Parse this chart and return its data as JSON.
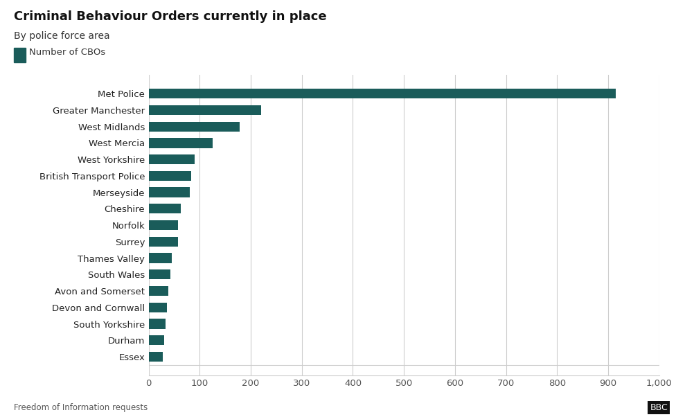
{
  "title": "Criminal Behaviour Orders currently in place",
  "subtitle": "By police force area",
  "legend_label": "Number of CBOs",
  "footnote": "Freedom of Information requests",
  "bar_color": "#1a5c5a",
  "background_color": "#ffffff",
  "categories": [
    "Met Police",
    "Greater Manchester",
    "West Midlands",
    "West Mercia",
    "West Yorkshire",
    "British Transport Police",
    "Merseyside",
    "Cheshire",
    "Norfolk",
    "Surrey",
    "Thames Valley",
    "South Wales",
    "Avon and Somerset",
    "Devon and Cornwall",
    "South Yorkshire",
    "Durham",
    "Essex"
  ],
  "values": [
    915,
    220,
    178,
    125,
    90,
    83,
    80,
    63,
    58,
    57,
    45,
    42,
    38,
    35,
    33,
    30,
    28
  ],
  "xlim": [
    0,
    1000
  ],
  "xtick_values": [
    0,
    100,
    200,
    300,
    400,
    500,
    600,
    700,
    800,
    900,
    1000
  ],
  "xtick_labels": [
    "0",
    "100",
    "200",
    "300",
    "400",
    "500",
    "600",
    "700",
    "800",
    "900",
    "1,000"
  ],
  "grid_color": "#cccccc",
  "title_fontsize": 13,
  "subtitle_fontsize": 10,
  "label_fontsize": 9.5,
  "tick_fontsize": 9.5,
  "footnote_fontsize": 8.5,
  "legend_fontsize": 9.5
}
